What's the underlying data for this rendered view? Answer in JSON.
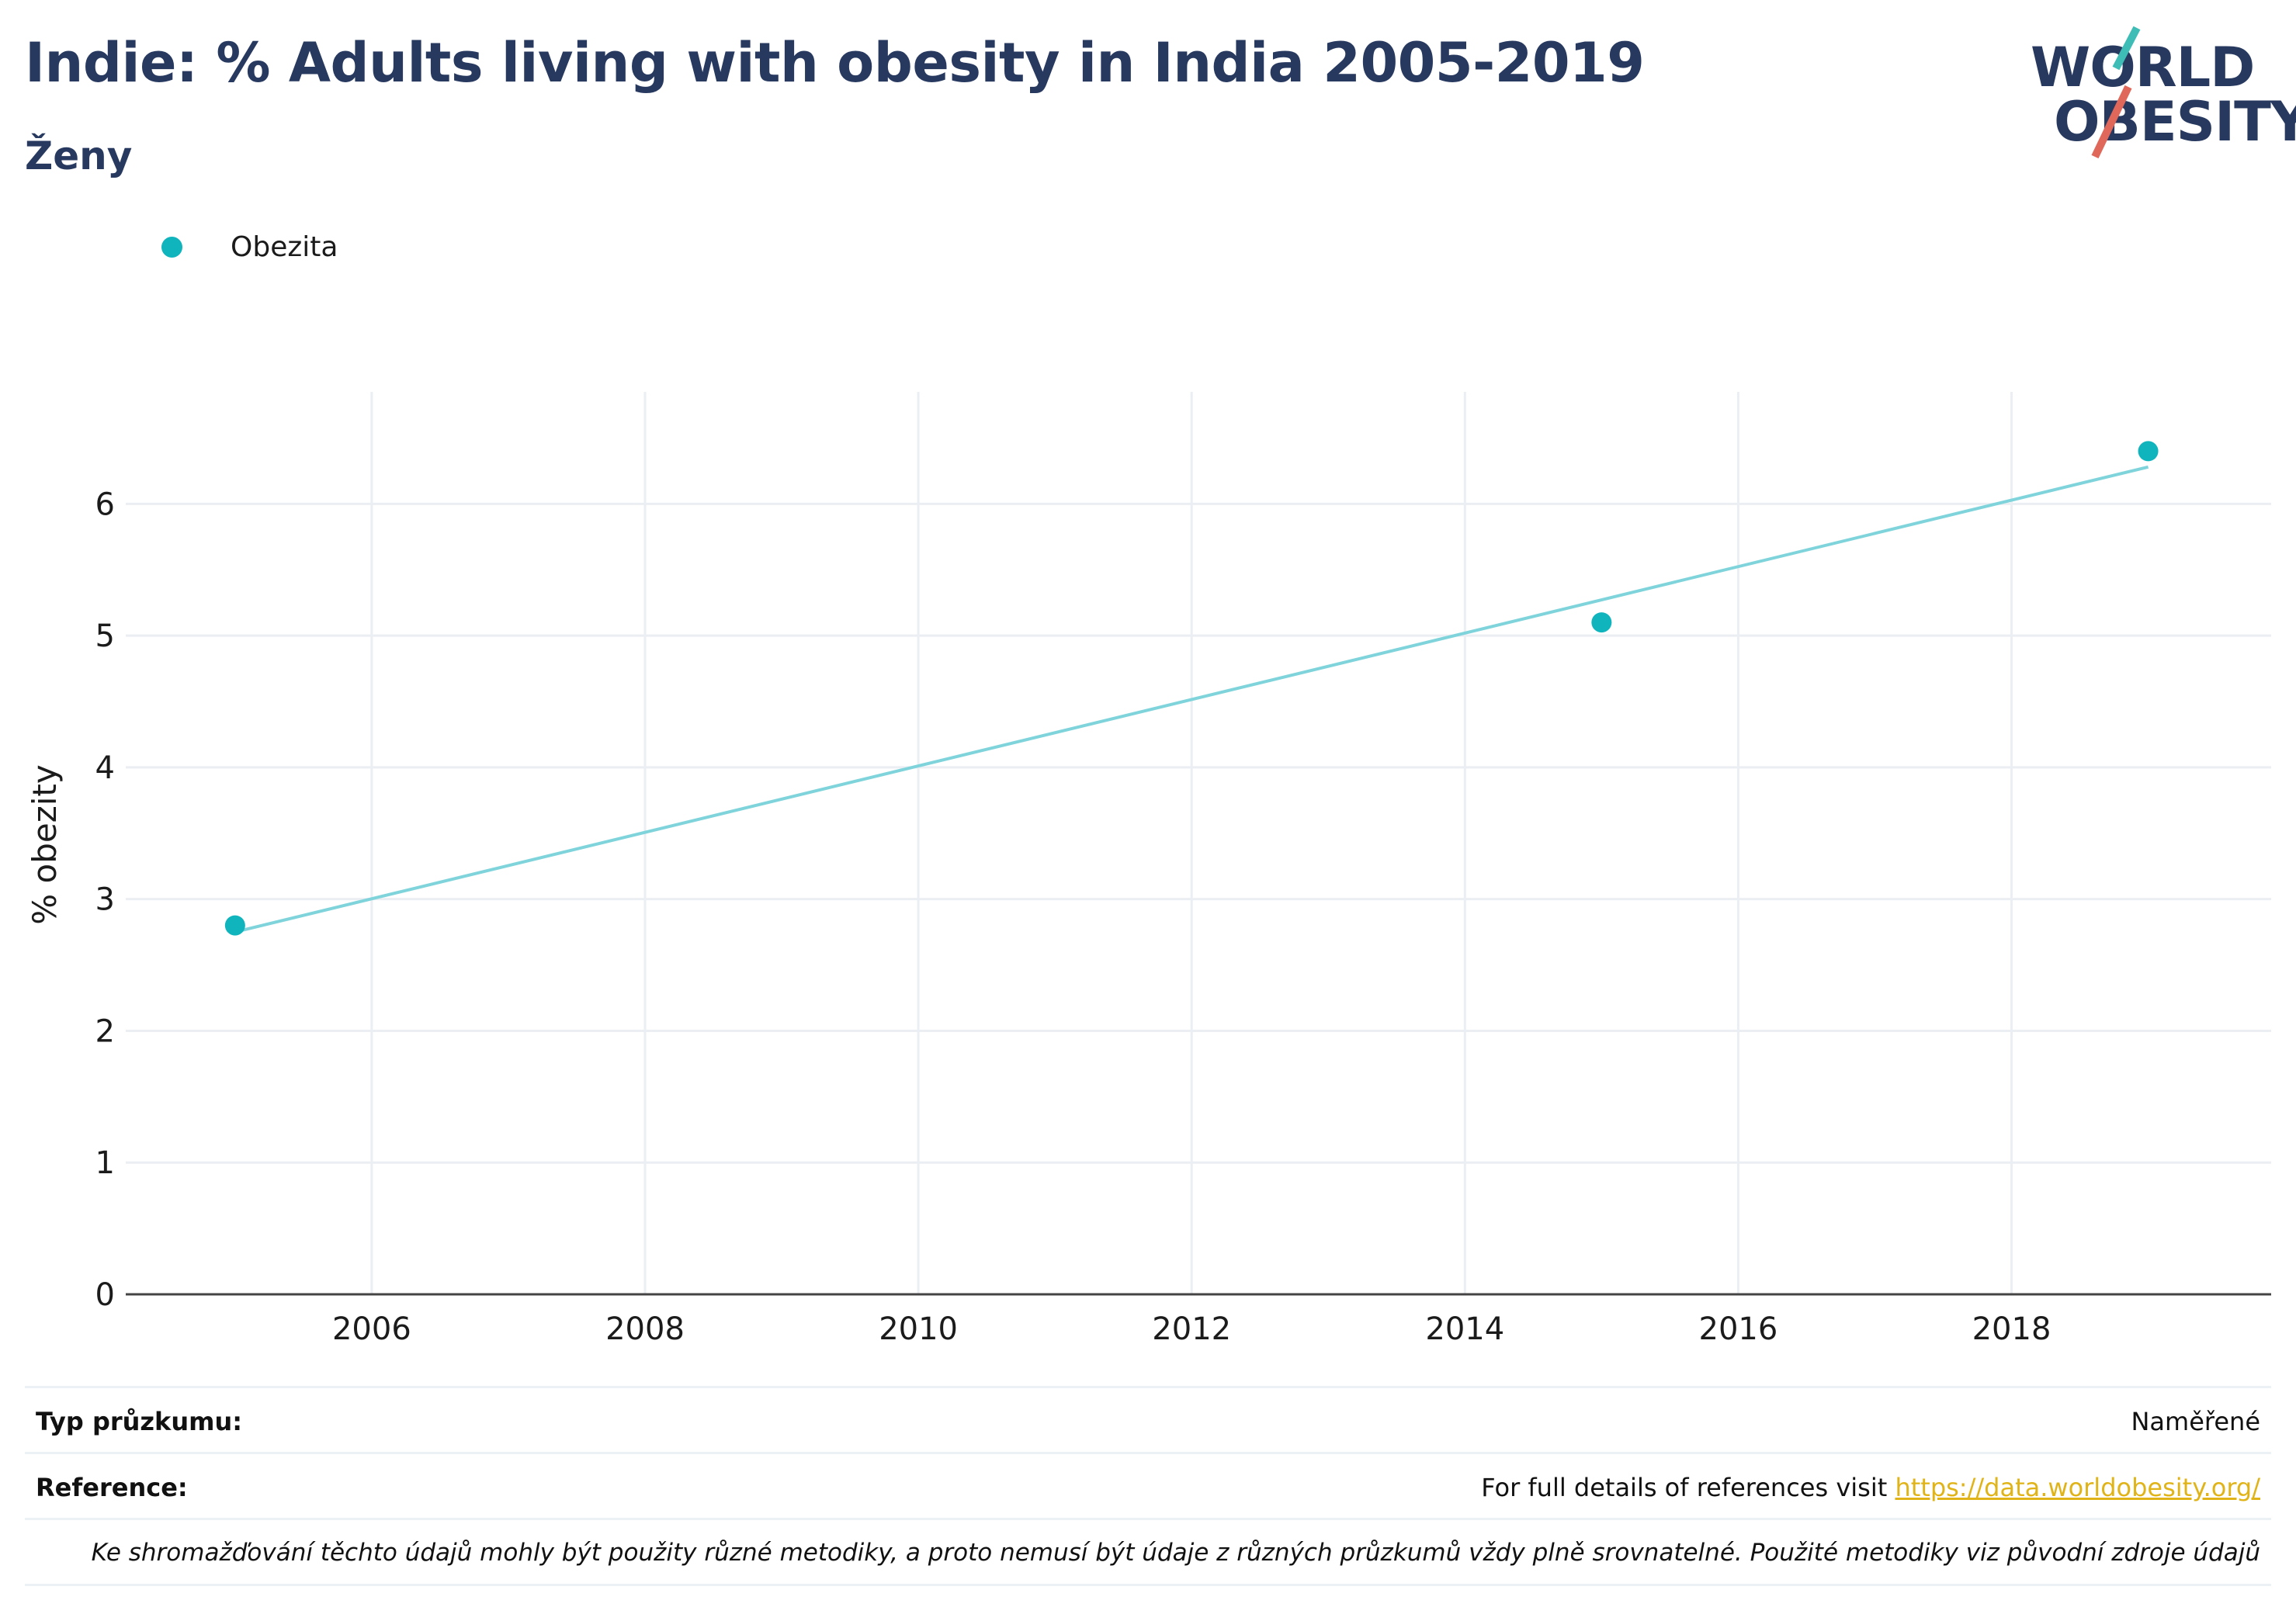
{
  "header": {
    "title": "Indie: % Adults living with obesity in India 2005-2019",
    "subtitle": "Ženy"
  },
  "logo": {
    "line1": "WORLD",
    "line2": "OBESITY",
    "accent_teal": "#3dbdb6",
    "accent_red": "#e0685a"
  },
  "legend": {
    "label": "Obezita"
  },
  "chart_data": {
    "type": "scatter",
    "title": "Indie: % Adults living with obesity in India 2005-2019",
    "subtitle": "Ženy",
    "xlabel": "",
    "ylabel": "% obezity",
    "x_ticks": [
      2006,
      2008,
      2010,
      2012,
      2014,
      2016,
      2018
    ],
    "y_ticks": [
      0,
      1,
      2,
      3,
      4,
      5,
      6
    ],
    "xlim": [
      2004.2,
      2019.9
    ],
    "ylim": [
      0,
      6.85
    ],
    "grid": true,
    "legend_position": "top-left",
    "series": [
      {
        "name": "Obezita",
        "color": "#10b4bd",
        "points": [
          {
            "x": 2005,
            "y": 2.8
          },
          {
            "x": 2015,
            "y": 5.1
          },
          {
            "x": 2019,
            "y": 6.4
          }
        ]
      }
    ],
    "trendline": {
      "color": "#7fd4db",
      "from": {
        "x": 2005,
        "y": 2.75
      },
      "to": {
        "x": 2019,
        "y": 6.28
      }
    }
  },
  "footer": {
    "survey_label": "Typ průzkumu:",
    "survey_value": "Naměřené",
    "reference_label": "Reference:",
    "reference_text": "For full details of references visit ",
    "reference_link": "https://data.worldobesity.org/",
    "note": "Ke shromažďování těchto údajů mohly být použity různé metodiky, a proto nemusí být údaje z různých průzkumů vždy plně srovnatelné. Použité metodiky viz původní zdroje údajů"
  }
}
